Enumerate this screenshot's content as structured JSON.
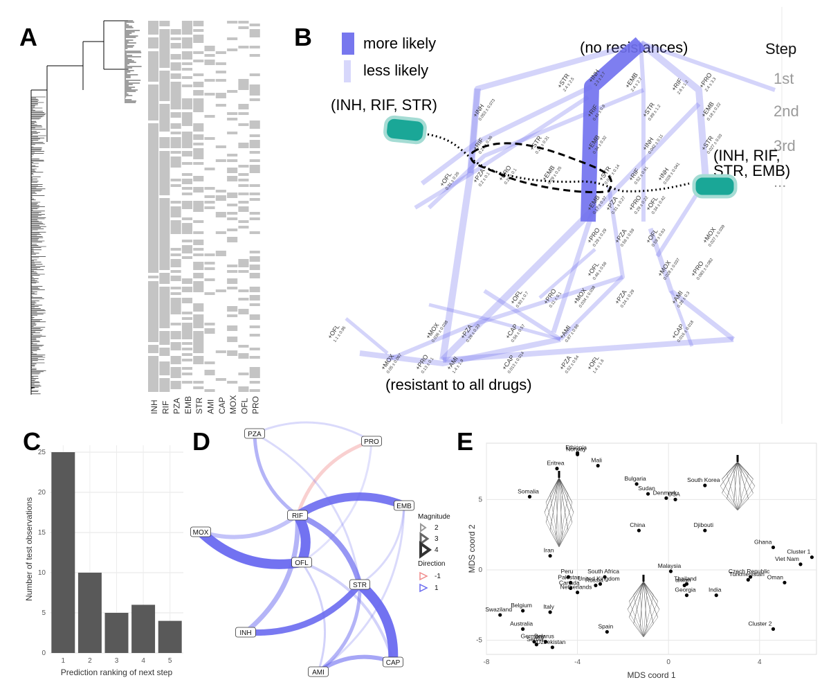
{
  "panels": {
    "a": "A",
    "b": "B",
    "c": "C",
    "d": "D",
    "e": "E"
  },
  "panel_a": {
    "drugs": [
      "INH",
      "RIF",
      "PZA",
      "EMB",
      "STR",
      "AMI",
      "CAP",
      "MOX",
      "OFL",
      "PRO"
    ]
  },
  "panel_b": {
    "legend_more": "more likely",
    "legend_less": "less likely",
    "top_label": "(no resistances)",
    "bottom_label": "(resistant to all drugs)",
    "left_genotype": "(INH, RIF, STR)",
    "right_genotype_line1": "(INH, RIF,",
    "right_genotype_line2": "STR, EMB)",
    "step_header": "Step",
    "steps": [
      "1st",
      "2nd",
      "3rd",
      "..."
    ],
    "edge_labels": [
      {
        "t": "+STR",
        "v": "2.4 ± 2.5"
      },
      {
        "t": "+INH",
        "v": "2.3 ± 2.7"
      },
      {
        "t": "+EMB",
        "v": "2.4 ± 2.7"
      },
      {
        "t": "+RIF",
        "v": "2.6 ± 1.2"
      },
      {
        "t": "+PRO",
        "v": "2.4 ± 3.3"
      },
      {
        "t": "+INH",
        "v": "0.053 ± 0.073"
      },
      {
        "t": "+RIF",
        "v": "0.41 ± 0.8"
      },
      {
        "t": "+STR",
        "v": "0.89 ± 1.2"
      },
      {
        "t": "+EMB",
        "v": "0.18 ± 0.22"
      },
      {
        "t": "+RIF",
        "v": "0.27 ± 0.36"
      },
      {
        "t": "+STR",
        "v": "0.28 ± 0.31"
      },
      {
        "t": "+EMB",
        "v": "0.34 ± 0.32"
      },
      {
        "t": "+INH",
        "v": "0.042 ± 0.11"
      },
      {
        "t": "+STR",
        "v": "0.027 ± 0.03"
      },
      {
        "t": "+OFL",
        "v": "0.31 ± 0.26"
      },
      {
        "t": "+PZA",
        "v": "0.2 ± 0.1"
      },
      {
        "t": "+PRO",
        "v": "0.26 ± 0.1"
      },
      {
        "t": "+EMB",
        "v": "0.29 ± 0.25"
      },
      {
        "t": "+STR",
        "v": "0.047 ± 0.14"
      },
      {
        "t": "+RIF",
        "v": "0.52 ± 0.61"
      },
      {
        "t": "+INH",
        "v": "0.028 ± 0.041"
      },
      {
        "t": "+EMB",
        "v": "0.17 ± 0.37"
      },
      {
        "t": "+PZA",
        "v": "0.31 ± 0.27"
      },
      {
        "t": "+PRO",
        "v": "0.29 ± 0.22"
      },
      {
        "t": "+OFL",
        "v": "0.34 ± 0.42"
      },
      {
        "t": "+PRO",
        "v": "0.29 ± 0.29"
      },
      {
        "t": "+PZA",
        "v": "0.56 ± 0.59"
      },
      {
        "t": "+OFL",
        "v": "0.59 ± 0.63"
      },
      {
        "t": "+MOX",
        "v": "0.027 ± 0.039"
      },
      {
        "t": "+OFL",
        "v": "0.46 ± 0.58"
      },
      {
        "t": "+MOX",
        "v": "0.028 ± 0.037"
      },
      {
        "t": "+PRO",
        "v": "0.083 ± 0.082"
      },
      {
        "t": "+OFL",
        "v": "0.93 ± 0.7"
      },
      {
        "t": "+PRO",
        "v": "0.11 ± 0.1"
      },
      {
        "t": "+MOX",
        "v": "0.034 ± 0.038"
      },
      {
        "t": "+PZA",
        "v": "0.24 ± 0.29"
      },
      {
        "t": "+AMI",
        "v": "0.28 ± 0.3"
      },
      {
        "t": "+OFL",
        "v": "1.1 ± 0.95"
      },
      {
        "t": "+MOX",
        "v": "0.036 ± 0.038"
      },
      {
        "t": "+PZA",
        "v": "0.28 ± 0.33"
      },
      {
        "t": "+CAP",
        "v": "0.56 ± 0.57"
      },
      {
        "t": "+AMI",
        "v": "0.87 ± 0.66"
      },
      {
        "t": "+CAP",
        "v": "0.016 ± 0.018"
      },
      {
        "t": "+MOX",
        "v": "0.05 ± 0.067"
      },
      {
        "t": "+PRO",
        "v": "0.13 ± 0.1"
      },
      {
        "t": "+AMI",
        "v": "1.4 ± 1.9"
      },
      {
        "t": "+CAP",
        "v": "0.013 ± 0.014"
      },
      {
        "t": "+PZA",
        "v": "0.52 ± 0.54"
      },
      {
        "t": "+OFL",
        "v": "1.4 ± 1.6"
      }
    ]
  },
  "chart_data": [
    {
      "type": "bar",
      "panel": "C",
      "categories": [
        "1",
        "2",
        "3",
        "4",
        "5"
      ],
      "values": [
        25,
        10,
        5,
        6,
        4
      ],
      "xlabel": "Prediction ranking of next step",
      "ylabel": "Number of test observations",
      "ylim": [
        0,
        25
      ],
      "yticks": [
        "0",
        "5",
        "10",
        "15",
        "20",
        "25"
      ],
      "grid": true
    },
    {
      "type": "scatter",
      "panel": "E",
      "xlabel": "MDS coord 1",
      "ylabel": "MDS coord 2",
      "xticks": [
        "-8",
        "-4",
        "0",
        "4"
      ],
      "yticks": [
        "5",
        "0",
        "-5"
      ],
      "xlim": [
        -8,
        6.5
      ],
      "ylim": [
        -6,
        9
      ],
      "grid": true,
      "points": [
        {
          "label": "Ethiopia",
          "x": -4.0,
          "y": 8.3
        },
        {
          "label": "Eritrea",
          "x": -4.9,
          "y": 7.2
        },
        {
          "label": "Norway",
          "x": -4.0,
          "y": 8.2
        },
        {
          "label": "Mali",
          "x": -3.1,
          "y": 7.4
        },
        {
          "label": "Bulgaria",
          "x": -1.4,
          "y": 6.1
        },
        {
          "label": "Sudan",
          "x": -0.9,
          "y": 5.4
        },
        {
          "label": "Denmark",
          "x": -0.1,
          "y": 5.1
        },
        {
          "label": "USA",
          "x": 0.3,
          "y": 5.0
        },
        {
          "label": "South Korea",
          "x": 1.6,
          "y": 6.0
        },
        {
          "label": "Somalia",
          "x": -6.1,
          "y": 5.2
        },
        {
          "label": "China",
          "x": -1.3,
          "y": 2.8
        },
        {
          "label": "Djibouti",
          "x": 1.6,
          "y": 2.8
        },
        {
          "label": "Ghana",
          "x": 4.6,
          "y": 1.6
        },
        {
          "label": "Cluster 1",
          "x": 6.3,
          "y": 0.9
        },
        {
          "label": "Iran",
          "x": -5.2,
          "y": 1.0
        },
        {
          "label": "Viet Nam",
          "x": 5.8,
          "y": 0.4
        },
        {
          "label": "Oman",
          "x": 5.1,
          "y": -0.9
        },
        {
          "label": "Turkmenistan",
          "x": 3.5,
          "y": -0.7
        },
        {
          "label": "Czech Republic",
          "x": 3.6,
          "y": -0.5
        },
        {
          "label": "India",
          "x": 2.1,
          "y": -1.8
        },
        {
          "label": "Georgia",
          "x": 0.8,
          "y": -1.8
        },
        {
          "label": "aiwan",
          "x": 0.7,
          "y": -1.1
        },
        {
          "label": "Thailand",
          "x": 0.8,
          "y": -1.0
        },
        {
          "label": "Malaysia",
          "x": 0.1,
          "y": -0.1
        },
        {
          "label": "South Africa",
          "x": -2.8,
          "y": -0.5
        },
        {
          "label": "United Kingdom",
          "x": -3.0,
          "y": -1.0
        },
        {
          "label": "Russia",
          "x": -3.2,
          "y": -1.1
        },
        {
          "label": "Peru",
          "x": -4.4,
          "y": -0.5
        },
        {
          "label": "Pakistan",
          "x": -4.3,
          "y": -0.9
        },
        {
          "label": "Canada",
          "x": -4.3,
          "y": -1.3
        },
        {
          "label": "Netherlands",
          "x": -4.0,
          "y": -1.6
        },
        {
          "label": "Belgium",
          "x": -6.4,
          "y": -2.9
        },
        {
          "label": "Italy",
          "x": -5.2,
          "y": -3.0
        },
        {
          "label": "Swaziland",
          "x": -7.4,
          "y": -3.2
        },
        {
          "label": "Australia",
          "x": -6.4,
          "y": -4.2
        },
        {
          "label": "Germany",
          "x": -5.9,
          "y": -5.1
        },
        {
          "label": "Belarus",
          "x": -5.4,
          "y": -5.1
        },
        {
          "label": "Serbia",
          "x": -5.8,
          "y": -5.3
        },
        {
          "label": "Uzbekistan",
          "x": -5.1,
          "y": -5.5
        },
        {
          "label": "Spain",
          "x": -2.7,
          "y": -4.4
        },
        {
          "label": "Cluster 2",
          "x": 4.6,
          "y": -4.2
        }
      ]
    }
  ],
  "panel_d": {
    "nodes": [
      "PZA",
      "PRO",
      "RIF",
      "EMB",
      "MOX",
      "OFL",
      "STR",
      "INH",
      "AMI",
      "CAP"
    ],
    "legend_magnitude": "Magnitude",
    "magnitude_values": [
      "2",
      "3",
      "4"
    ],
    "legend_direction": "Direction",
    "direction_values": [
      "-1",
      "1"
    ],
    "colors": {
      "positive": "#6a6af0",
      "negative": "#f08a8a"
    }
  },
  "colors": {
    "accent": "#7070ee",
    "teal": "#1aa797",
    "bar": "#595959"
  }
}
